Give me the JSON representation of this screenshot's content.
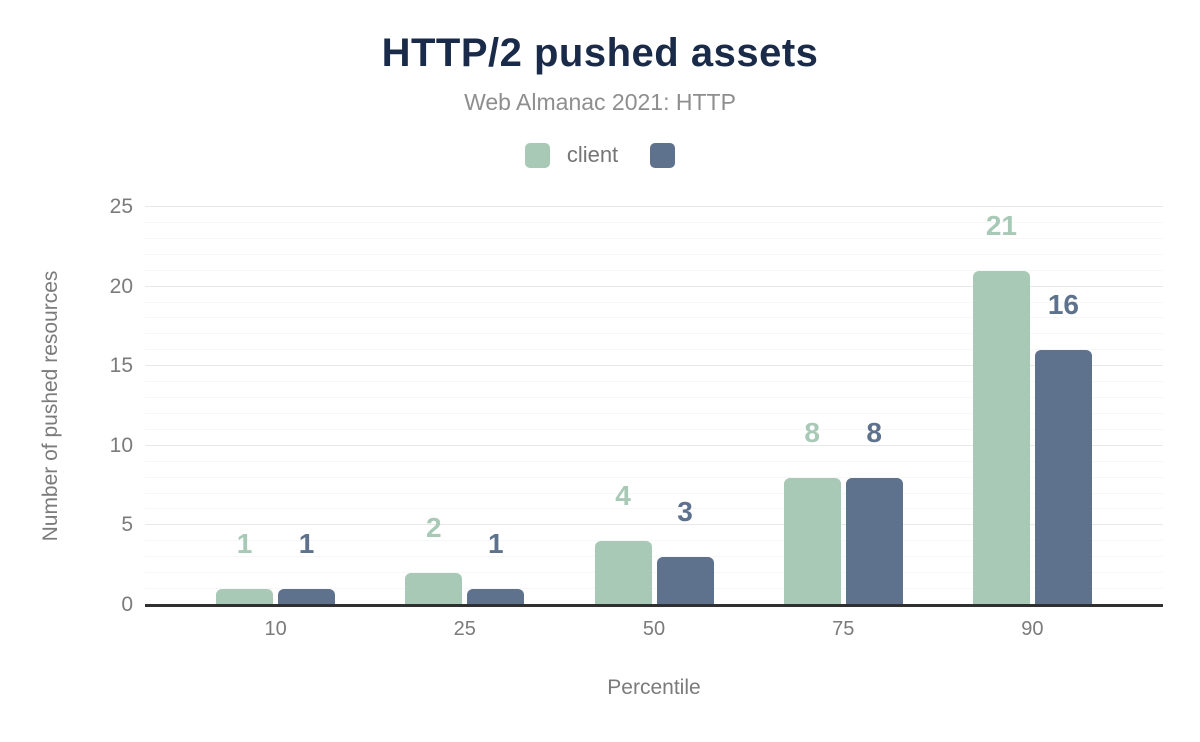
{
  "chart_data": {
    "type": "bar",
    "title": "HTTP/2 pushed assets",
    "subtitle": "Web Almanac 2021: HTTP",
    "xlabel": "Percentile",
    "ylabel": "Number of pushed resources",
    "categories": [
      "10",
      "25",
      "50",
      "75",
      "90"
    ],
    "series": [
      {
        "name": "client",
        "color": "#a7c9b6",
        "values": [
          1,
          2,
          4,
          8,
          21
        ]
      },
      {
        "name": "",
        "color": "#5e718d",
        "values": [
          1,
          1,
          3,
          8,
          16
        ]
      }
    ],
    "ylim": [
      0,
      25
    ],
    "yticks": [
      0,
      5,
      10,
      15,
      20,
      25
    ],
    "grid": {
      "minor_step": 1,
      "major_step": 5,
      "orientation": "horizontal"
    },
    "legend_position": "top",
    "value_labels": "above-bars"
  },
  "colors": {
    "title": "#1a2b49",
    "subtitle": "#8e8e8e",
    "tick_text": "#7b7b7b",
    "axis_line": "#303030",
    "gridline_minor": "#f7f7f7",
    "gridline_major": "#e8e8e8",
    "background": "#ffffff"
  }
}
